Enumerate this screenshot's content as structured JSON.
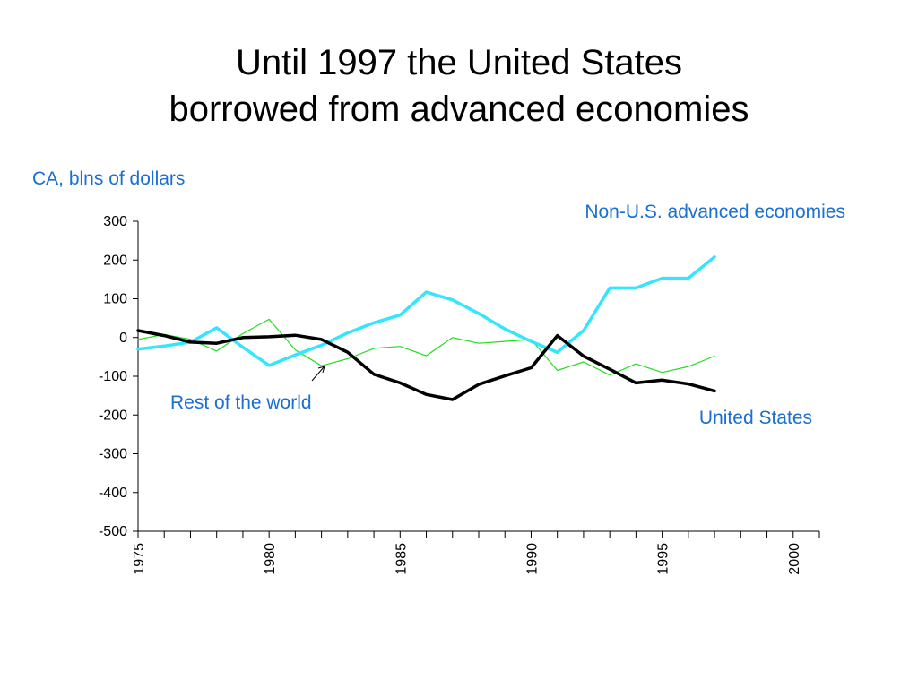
{
  "slide": {
    "title_line1": "Until 1997 the United States",
    "title_line2": "borrowed from advanced economies"
  },
  "chart_data": {
    "type": "line",
    "ylabel": "CA, blns of dollars",
    "xlim": [
      1975,
      2001
    ],
    "ylim": [
      -500,
      300
    ],
    "y_ticks": [
      300,
      200,
      100,
      0,
      -100,
      -200,
      -300,
      -400,
      -500
    ],
    "x_tick_labels": [
      1975,
      1980,
      1985,
      1990,
      1995,
      2000
    ],
    "grid": false,
    "label_color": "#1a6fd1",
    "series": [
      {
        "name": "Non-U.S. advanced economies",
        "color": "#33e5ff",
        "x": [
          1975,
          1976,
          1977,
          1978,
          1979,
          1980,
          1981,
          1982,
          1983,
          1984,
          1985,
          1986,
          1987,
          1988,
          1989,
          1990,
          1991,
          1992,
          1993,
          1994,
          1995,
          1996,
          1997
        ],
        "values": [
          -30,
          -22,
          -12,
          25,
          -25,
          -72,
          -45,
          -20,
          12,
          38,
          58,
          117,
          97,
          62,
          22,
          -10,
          -38,
          18,
          128,
          128,
          153,
          153,
          208
        ]
      },
      {
        "name": "United States",
        "color": "#000000",
        "x": [
          1975,
          1976,
          1977,
          1978,
          1979,
          1980,
          1981,
          1982,
          1983,
          1984,
          1985,
          1986,
          1987,
          1988,
          1989,
          1990,
          1991,
          1992,
          1993,
          1994,
          1995,
          1996,
          1997
        ],
        "values": [
          18,
          5,
          -12,
          -15,
          0,
          2,
          6,
          -5,
          -38,
          -95,
          -117,
          -147,
          -160,
          -121,
          -99,
          -78,
          5,
          -48,
          -82,
          -117,
          -110,
          -120,
          -138
        ]
      },
      {
        "name": "Rest of the world",
        "color": "#22dd22",
        "x": [
          1975,
          1976,
          1977,
          1978,
          1979,
          1980,
          1981,
          1982,
          1983,
          1984,
          1985,
          1986,
          1987,
          1988,
          1989,
          1990,
          1991,
          1992,
          1993,
          1994,
          1995,
          1996,
          1997
        ],
        "values": [
          -5,
          8,
          -5,
          -35,
          10,
          47,
          -32,
          -73,
          -55,
          -28,
          -23,
          -47,
          0,
          -15,
          -10,
          -5,
          -85,
          -63,
          -97,
          -68,
          -90,
          -75,
          -48
        ]
      }
    ]
  }
}
